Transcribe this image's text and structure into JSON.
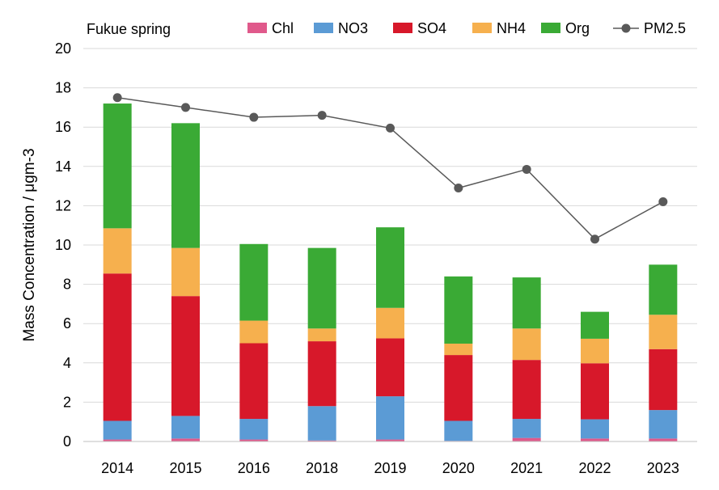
{
  "chart_data": {
    "type": "bar",
    "stacked": true,
    "title": "Fukue spring",
    "xlabel": "",
    "ylabel": "Mass Concentration / μgm-3",
    "ylim": [
      0,
      20
    ],
    "yticks": [
      0,
      2,
      4,
      6,
      8,
      10,
      12,
      14,
      16,
      18,
      20
    ],
    "grid": true,
    "legend_position": "top",
    "categories": [
      "2014",
      "2015",
      "2016",
      "2018",
      "2019",
      "2020",
      "2021",
      "2022",
      "2023"
    ],
    "series": [
      {
        "name": "Chl",
        "color": "#e0598b",
        "values": [
          0.1,
          0.15,
          0.1,
          0.05,
          0.1,
          0.03,
          0.18,
          0.15,
          0.15
        ]
      },
      {
        "name": "NO3",
        "color": "#5b9bd5",
        "values": [
          0.95,
          1.15,
          1.05,
          1.75,
          2.2,
          1.02,
          0.97,
          0.98,
          1.45
        ]
      },
      {
        "name": "SO4",
        "color": "#d7182a",
        "values": [
          7.5,
          6.1,
          3.85,
          3.3,
          2.95,
          3.35,
          3.0,
          2.85,
          3.1
        ]
      },
      {
        "name": "NH4",
        "color": "#f6b04e",
        "values": [
          2.3,
          2.45,
          1.15,
          0.65,
          1.55,
          0.58,
          1.6,
          1.25,
          1.75
        ]
      },
      {
        "name": "Org",
        "color": "#3aaa35",
        "values": [
          6.35,
          6.35,
          3.9,
          4.1,
          4.1,
          3.42,
          2.6,
          1.37,
          2.55
        ]
      }
    ],
    "line_series": {
      "name": "PM2.5",
      "color": "#595959",
      "marker_color": "#595959",
      "values": [
        17.5,
        17.0,
        16.5,
        16.6,
        15.95,
        12.9,
        13.85,
        10.3,
        12.2
      ]
    }
  }
}
